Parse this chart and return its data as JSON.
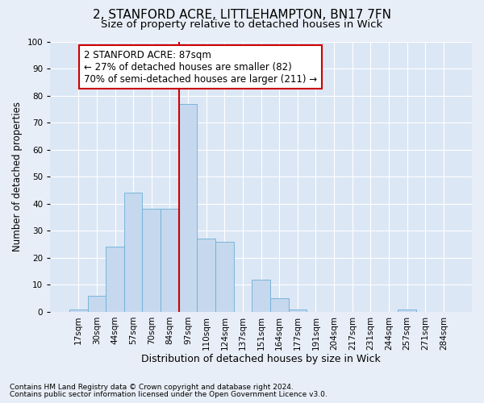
{
  "title1": "2, STANFORD ACRE, LITTLEHAMPTON, BN17 7FN",
  "title2": "Size of property relative to detached houses in Wick",
  "xlabel": "Distribution of detached houses by size in Wick",
  "ylabel": "Number of detached properties",
  "footnote1": "Contains HM Land Registry data © Crown copyright and database right 2024.",
  "footnote2": "Contains public sector information licensed under the Open Government Licence v3.0.",
  "bin_labels": [
    "17sqm",
    "30sqm",
    "44sqm",
    "57sqm",
    "70sqm",
    "84sqm",
    "97sqm",
    "110sqm",
    "124sqm",
    "137sqm",
    "151sqm",
    "164sqm",
    "177sqm",
    "191sqm",
    "204sqm",
    "217sqm",
    "231sqm",
    "244sqm",
    "257sqm",
    "271sqm",
    "284sqm"
  ],
  "bar_values": [
    1,
    6,
    24,
    44,
    38,
    38,
    77,
    27,
    26,
    0,
    12,
    5,
    1,
    0,
    0,
    0,
    0,
    0,
    1,
    0,
    0
  ],
  "bar_color": "#c5d8ee",
  "bar_edge_color": "#6baed6",
  "vline_index": 6,
  "vline_color": "#cc0000",
  "annotation_text": "2 STANFORD ACRE: 87sqm\n← 27% of detached houses are smaller (82)\n70% of semi-detached houses are larger (211) →",
  "annotation_box_color": "white",
  "annotation_box_edge_color": "#cc0000",
  "ylim": [
    0,
    100
  ],
  "yticks": [
    0,
    10,
    20,
    30,
    40,
    50,
    60,
    70,
    80,
    90,
    100
  ],
  "background_color": "#e8eef7",
  "plot_background_color": "#dce7f5",
  "grid_color": "white",
  "title1_fontsize": 11,
  "title2_fontsize": 9.5,
  "annotation_fontsize": 8.5,
  "tick_fontsize": 7.5,
  "xlabel_fontsize": 9,
  "ylabel_fontsize": 8.5,
  "footnote_fontsize": 6.5
}
